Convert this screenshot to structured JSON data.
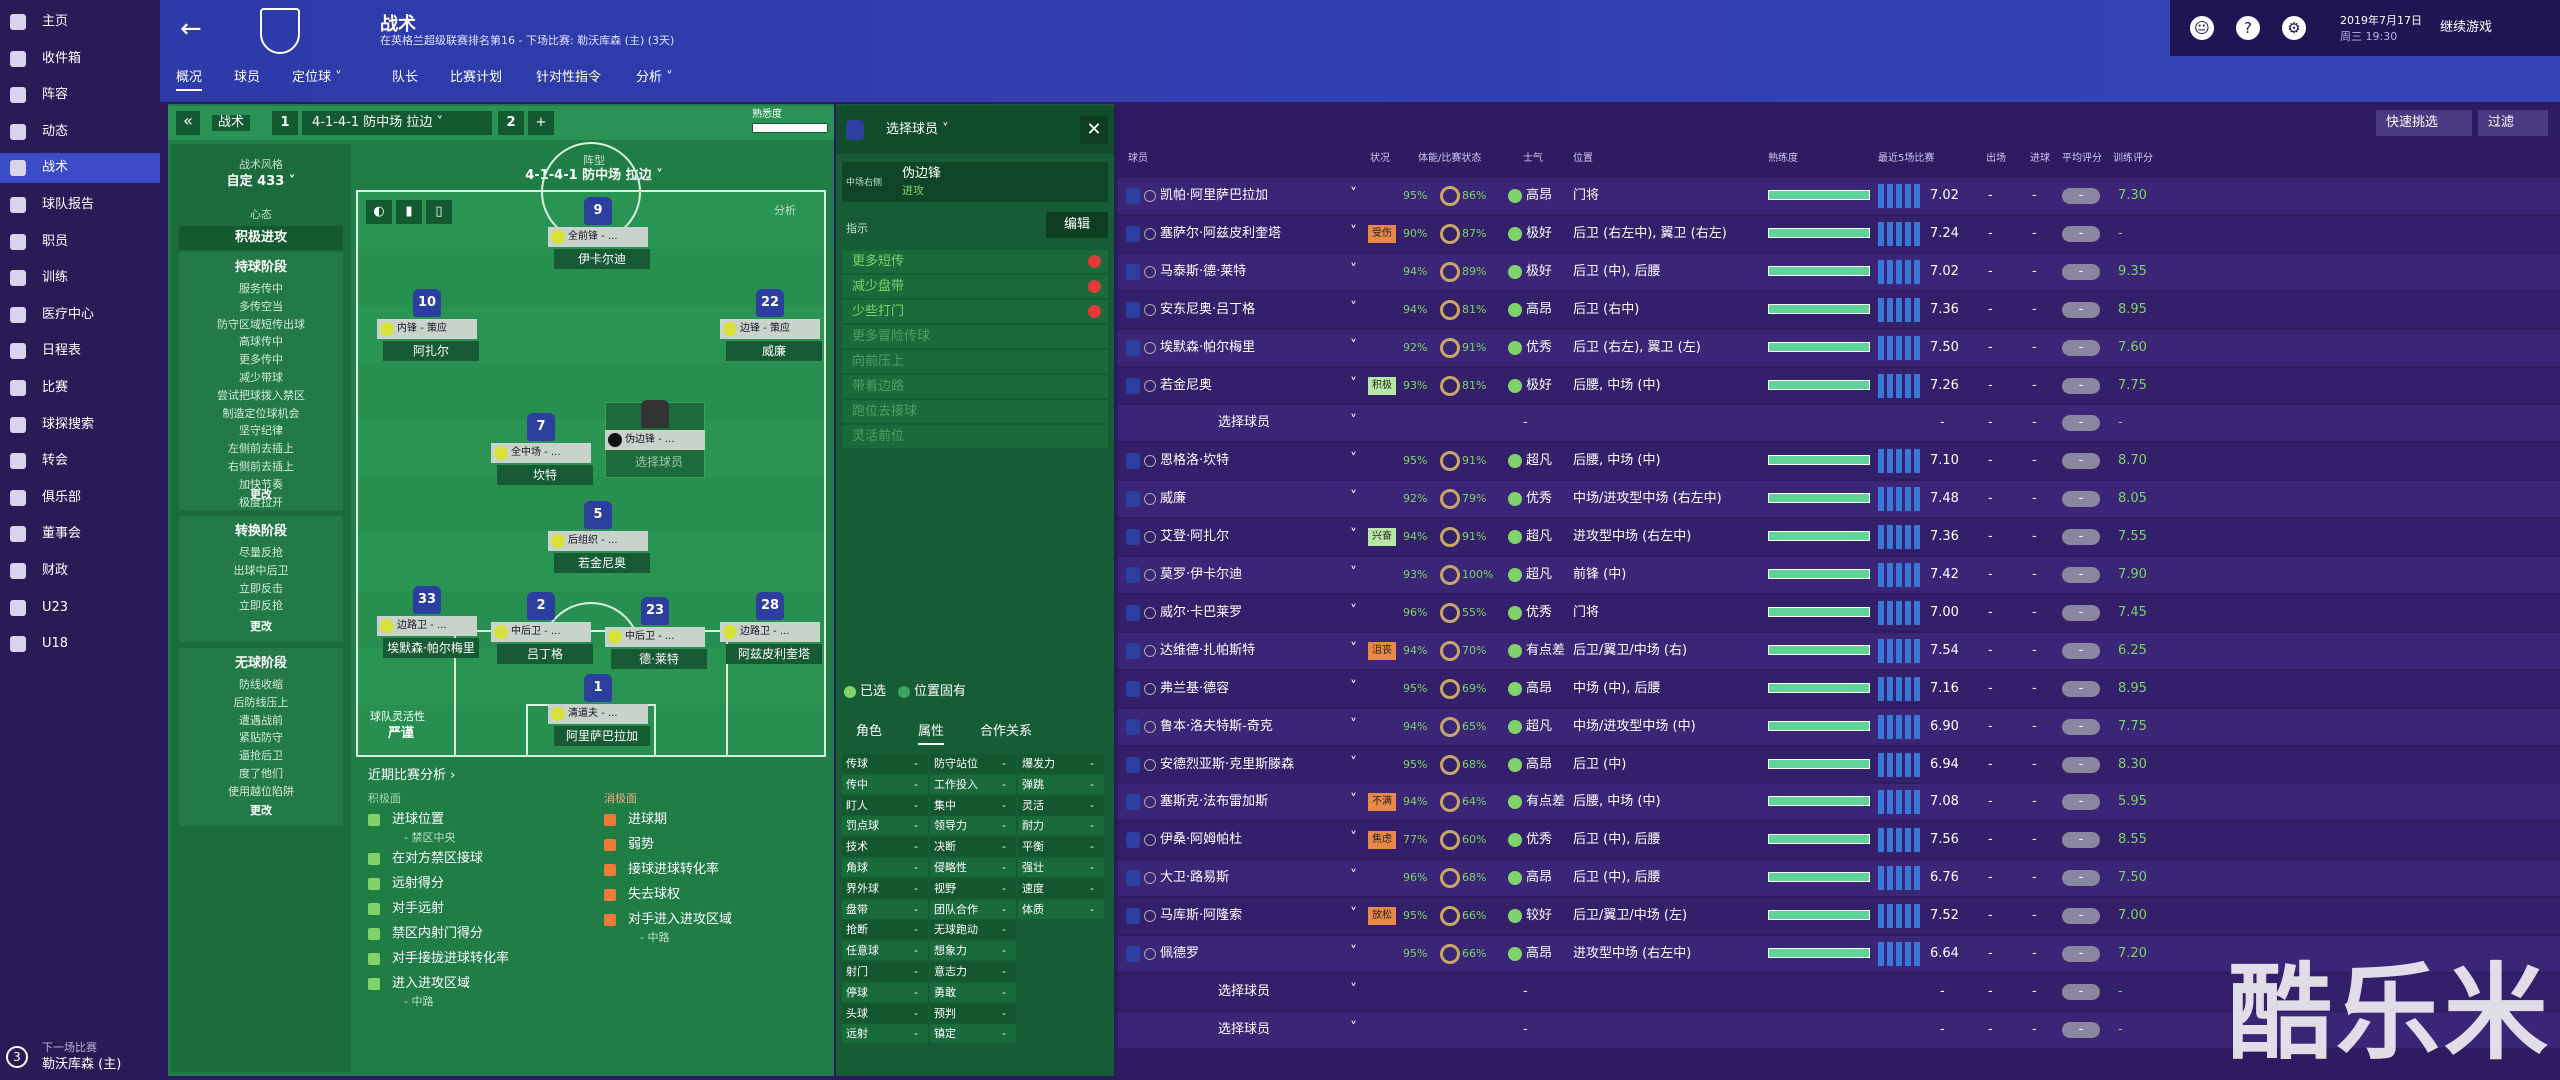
{
  "sidebar": {
    "items": [
      "主页",
      "收件箱",
      "阵容",
      "动态",
      "战术",
      "球队报告",
      "职员",
      "训练",
      "医疗中心",
      "日程表",
      "比赛",
      "球探搜索",
      "转会",
      "俱乐部",
      "董事会",
      "财政",
      "U23",
      "U18"
    ],
    "next_label": "下一场比赛",
    "next_team": "勒沃库森 (主)",
    "next_days": "3"
  },
  "header": {
    "title": "战术",
    "subtitle": "在英格兰超级联赛排名第16 - 下场比赛: 勒沃库森 (主) (3天)",
    "tabs": [
      "概况",
      "球员",
      "定位球 ˅",
      "队长",
      "比赛计划",
      "针对性指令",
      "分析 ˅"
    ],
    "date": "2019年7月17日",
    "time": "周三 19:30",
    "continue": "继续游戏"
  },
  "tactic_bar": {
    "label": "战术",
    "slot1": "1",
    "name": "4-1-4-1 防中场 拉边 ˅",
    "slot2": "2",
    "add": "+",
    "familiarity": "熟悉度"
  },
  "style": {
    "label": "战术风格",
    "value": "自定 433 ˅",
    "mentality_label": "心态",
    "mentality": "积极进攻",
    "phases": [
      {
        "title": "持球阶段",
        "items": [
          "服务传中",
          "多传空当",
          "防守区域短传出球",
          "高球传中",
          "更多传中",
          "减少带球",
          "尝试把球拨入禁区",
          "制造定位球机会",
          "坚守纪律",
          "左侧前去插上",
          "右侧前去插上",
          "加快节奏",
          "极度拉开"
        ],
        "change": "更改"
      },
      {
        "title": "转换阶段",
        "items": [
          "尽量反抢",
          "出球中后卫",
          "立即反击",
          "立即反抢"
        ],
        "change": "更改"
      },
      {
        "title": "无球阶段",
        "items": [
          "防线收缩",
          "后防线压上",
          "遭遇战前",
          "紧贴防守",
          "逼抢后卫",
          "度了他们",
          "使用越位陷阱"
        ],
        "change": "更改"
      }
    ]
  },
  "pitch": {
    "formation_label": "阵型",
    "formation": "4-1-4-1 防中场 拉边 ˅",
    "analysis": "分析",
    "players": [
      {
        "number": "9",
        "role": "全前锋 - ...",
        "name": "伊卡尔迪"
      },
      {
        "number": "10",
        "role": "内锋 - 策应",
        "name": "阿扎尔"
      },
      {
        "number": "22",
        "role": "边锋 - 策应",
        "name": "威廉"
      },
      {
        "number": "7",
        "role": "全中场 - ...",
        "name": "坎特"
      },
      {
        "role": "伪边锋 - ...",
        "name": "选择球员"
      },
      {
        "number": "5",
        "role": "后组织 - ...",
        "name": "若金尼奥"
      },
      {
        "number": "33",
        "role": "边路卫 - ...",
        "name": "埃默森·帕尔梅里"
      },
      {
        "number": "2",
        "role": "中后卫 - ...",
        "name": "吕丁格"
      },
      {
        "number": "23",
        "role": "中后卫 - ...",
        "name": "德·莱特"
      },
      {
        "number": "28",
        "role": "边路卫 - ...",
        "name": "阿兹皮利奎塔"
      },
      {
        "number": "1",
        "role": "清道夫 - ...",
        "name": "阿里萨巴拉加"
      }
    ],
    "fluidity_label": "球队灵活性",
    "fluidity": "严谨"
  },
  "recent": {
    "title": "近期比赛分析 ›",
    "positive_label": "积极面",
    "positive": [
      {
        "text": "进球位置",
        "sub": "- 禁区中央"
      },
      {
        "text": "在对方禁区接球"
      },
      {
        "text": "远射得分"
      },
      {
        "text": "对手远射"
      },
      {
        "text": "禁区内射门得分"
      },
      {
        "text": "对手接拢进球转化率"
      },
      {
        "text": "进入进攻区域",
        "sub": "- 中路"
      }
    ],
    "negative_label": "消极面",
    "negative": [
      {
        "text": "进球期"
      },
      {
        "text": "弱势"
      },
      {
        "text": "接球进球转化率"
      },
      {
        "text": "失去球权"
      },
      {
        "text": "对手进入进攻区域",
        "sub": "- 中路"
      }
    ]
  },
  "role_panel": {
    "title": "选择球员 ˅",
    "position": "中场右侧",
    "role": "伪边锋",
    "duty": "进攻",
    "instructions_label": "指示",
    "edit": "编辑",
    "instructions": [
      "更多短传",
      "减少盘带",
      "少些打门"
    ],
    "suggested": [
      "更多冒险传球",
      "向前压上",
      "带着边路",
      "跑位去接球",
      "灵活前位"
    ],
    "selected": "已选",
    "innate": "位置固有",
    "tabs": [
      "角色",
      "属性",
      "合作关系"
    ],
    "attributes": [
      [
        "传球",
        "传中",
        "盯人",
        "罚点球",
        "技术",
        "角球",
        "界外球",
        "盘带",
        "抢断",
        "任意球",
        "射门",
        "停球",
        "头球",
        "远射"
      ],
      [
        "防守站位",
        "工作投入",
        "集中",
        "领导力",
        "决断",
        "侵略性",
        "视野",
        "团队合作",
        "无球跑动",
        "想象力",
        "意志力",
        "勇敢",
        "预判",
        "镇定"
      ],
      [
        "爆发力",
        "弹跳",
        "灵活",
        "耐力",
        "平衡",
        "强壮",
        "速度",
        "体质"
      ]
    ],
    "dash": "-"
  },
  "squad": {
    "quick": "快速挑选",
    "filter": "过滤",
    "columns": [
      "球员",
      "状况",
      "体能/比赛状态",
      "士气",
      "位置",
      "熟练度",
      "最近5场比赛",
      "出场",
      "进球",
      "平均评分",
      "训练评分"
    ],
    "rows": [
      {
        "name": "凯帕·阿里萨巴拉加",
        "fitness": "95%",
        "form": "86%",
        "morale": "高昂",
        "position": "门将",
        "rating": "7.02",
        "apps": "-",
        "goals": "-",
        "avg": "-",
        "train": "7.30"
      },
      {
        "name": "塞萨尔·阿兹皮利奎塔",
        "tag": "受伤",
        "fitness": "90%",
        "form": "87%",
        "morale": "极好",
        "position": "后卫 (右左中), 翼卫 (右左)",
        "rating": "7.24",
        "apps": "-",
        "goals": "-",
        "avg": "-",
        "train": "-"
      },
      {
        "name": "马泰斯·德·莱特",
        "fitness": "94%",
        "form": "89%",
        "morale": "极好",
        "position": "后卫 (中), 后腰",
        "rating": "7.02",
        "apps": "-",
        "goals": "-",
        "avg": "-",
        "train": "9.35"
      },
      {
        "name": "安东尼奥·吕丁格",
        "fitness": "94%",
        "form": "81%",
        "morale": "高昂",
        "position": "后卫 (右中)",
        "rating": "7.36",
        "apps": "-",
        "goals": "-",
        "avg": "-",
        "train": "8.95"
      },
      {
        "name": "埃默森·帕尔梅里",
        "fitness": "92%",
        "form": "91%",
        "morale": "优秀",
        "position": "后卫 (右左), 翼卫 (左)",
        "rating": "7.50",
        "apps": "-",
        "goals": "-",
        "avg": "-",
        "train": "7.60"
      },
      {
        "name": "若金尼奥",
        "tag": "积极",
        "fitness": "93%",
        "form": "81%",
        "morale": "极好",
        "position": "后腰, 中场 (中)",
        "rating": "7.26",
        "apps": "-",
        "goals": "-",
        "avg": "-",
        "train": "7.75"
      },
      {
        "name": "选择球员",
        "morale": "-",
        "rating": "-",
        "apps": "-",
        "goals": "-",
        "avg": "-",
        "train": "-"
      },
      {
        "name": "恩格洛·坎特",
        "fitness": "95%",
        "form": "91%",
        "morale": "超凡",
        "position": "后腰, 中场 (中)",
        "rating": "7.10",
        "apps": "-",
        "goals": "-",
        "avg": "-",
        "train": "8.70"
      },
      {
        "name": "威廉",
        "fitness": "92%",
        "form": "79%",
        "morale": "优秀",
        "position": "中场/进攻型中场 (右左中)",
        "rating": "7.48",
        "apps": "-",
        "goals": "-",
        "avg": "-",
        "train": "8.05"
      },
      {
        "name": "艾登·阿扎尔",
        "tag": "兴奋",
        "fitness": "94%",
        "form": "91%",
        "morale": "超凡",
        "position": "进攻型中场 (右左中)",
        "rating": "7.36",
        "apps": "-",
        "goals": "-",
        "avg": "-",
        "train": "7.55"
      },
      {
        "name": "莫罗·伊卡尔迪",
        "fitness": "93%",
        "form": "100%",
        "morale": "超凡",
        "position": "前锋 (中)",
        "rating": "7.42",
        "apps": "-",
        "goals": "-",
        "avg": "-",
        "train": "7.90"
      },
      {
        "name": "威尔·卡巴莱罗",
        "fitness": "96%",
        "form": "55%",
        "morale": "优秀",
        "position": "门将",
        "rating": "7.00",
        "apps": "-",
        "goals": "-",
        "avg": "-",
        "train": "7.45"
      },
      {
        "name": "达维德·扎帕斯特",
        "tag": "沮丧",
        "fitness": "94%",
        "form": "70%",
        "morale": "有点差",
        "position": "后卫/翼卫/中场 (右)",
        "rating": "7.54",
        "apps": "-",
        "goals": "-",
        "avg": "-",
        "train": "6.25"
      },
      {
        "name": "弗兰基·德容",
        "fitness": "95%",
        "form": "69%",
        "morale": "高昂",
        "position": "中场 (中), 后腰",
        "rating": "7.16",
        "apps": "-",
        "goals": "-",
        "avg": "-",
        "train": "8.95"
      },
      {
        "name": "鲁本·洛夫特斯-奇克",
        "fitness": "94%",
        "form": "65%",
        "morale": "超凡",
        "position": "中场/进攻型中场 (中)",
        "rating": "6.90",
        "apps": "-",
        "goals": "-",
        "avg": "-",
        "train": "7.75"
      },
      {
        "name": "安德烈亚斯·克里斯滕森",
        "fitness": "95%",
        "form": "68%",
        "morale": "高昂",
        "position": "后卫 (中)",
        "rating": "6.94",
        "apps": "-",
        "goals": "-",
        "avg": "-",
        "train": "8.30"
      },
      {
        "name": "塞斯克·法布雷加斯",
        "tag": "不满",
        "fitness": "94%",
        "form": "64%",
        "morale": "有点差",
        "position": "后腰, 中场 (中)",
        "rating": "7.08",
        "apps": "-",
        "goals": "-",
        "avg": "-",
        "train": "5.95"
      },
      {
        "name": "伊桑·阿姆帕杜",
        "tag": "焦虑",
        "fitness": "77%",
        "form": "60%",
        "morale": "优秀",
        "position": "后卫 (中), 后腰",
        "rating": "7.56",
        "apps": "-",
        "goals": "-",
        "avg": "-",
        "train": "8.55"
      },
      {
        "name": "大卫·路易斯",
        "fitness": "96%",
        "form": "68%",
        "morale": "高昂",
        "position": "后卫 (中), 后腰",
        "rating": "6.76",
        "apps": "-",
        "goals": "-",
        "avg": "-",
        "train": "7.50"
      },
      {
        "name": "马库斯·阿隆索",
        "tag": "放松",
        "fitness": "95%",
        "form": "66%",
        "morale": "较好",
        "position": "后卫/翼卫/中场 (左)",
        "rating": "7.52",
        "apps": "-",
        "goals": "-",
        "avg": "-",
        "train": "7.00"
      },
      {
        "name": "佩德罗",
        "fitness": "95%",
        "form": "66%",
        "morale": "高昂",
        "position": "进攻型中场 (右左中)",
        "rating": "6.64",
        "apps": "-",
        "goals": "-",
        "avg": "-",
        "train": "7.20"
      },
      {
        "name": "选择球员",
        "morale": "-",
        "rating": "-",
        "apps": "-",
        "goals": "-",
        "avg": "-",
        "train": "-"
      },
      {
        "name": "选择球员",
        "morale": "-",
        "rating": "-",
        "apps": "-",
        "goals": "-",
        "avg": "-",
        "train": "-"
      }
    ]
  },
  "watermark": "酷乐米"
}
